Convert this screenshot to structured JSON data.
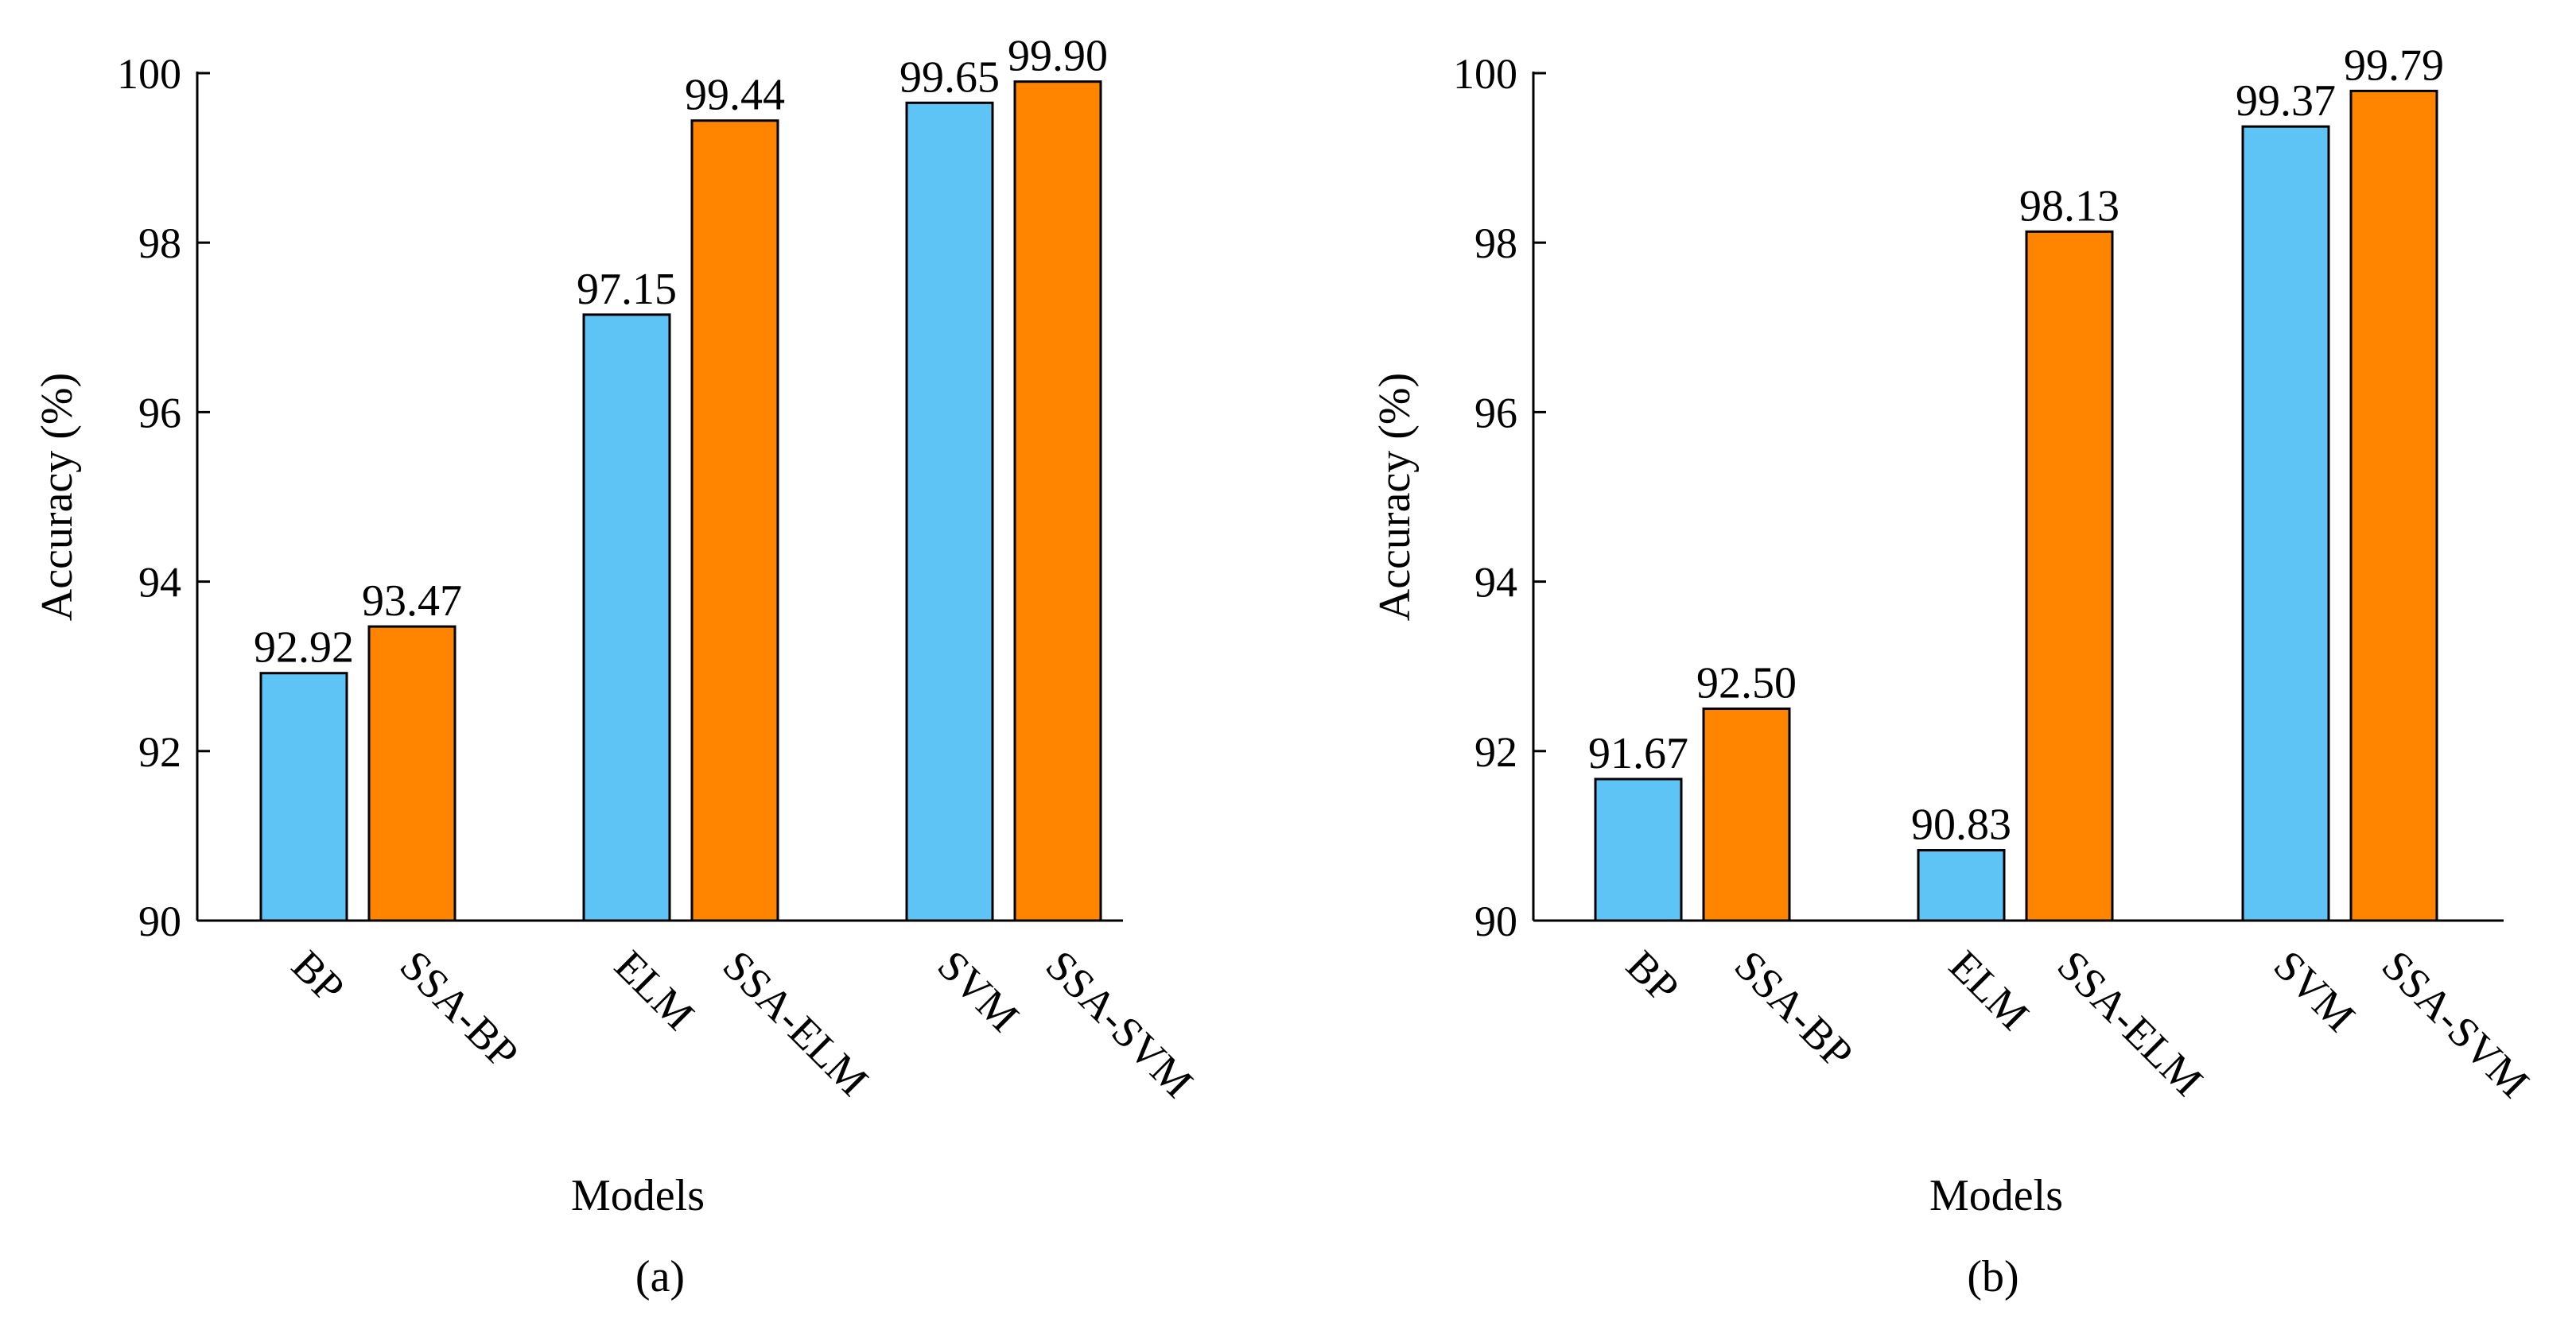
{
  "chart_data": [
    {
      "type": "bar",
      "panel_label": "(a)",
      "categories": [
        "BP",
        "SSA-BP",
        "ELM",
        "SSA-ELM",
        "SVM",
        "SSA-SVM"
      ],
      "values": [
        92.92,
        93.47,
        97.15,
        99.44,
        99.65,
        99.9
      ],
      "value_labels": [
        "92.92",
        "93.47",
        "97.15",
        "99.44",
        "99.65",
        "99.90"
      ],
      "colors": [
        "#5EC4F5",
        "#FF8500",
        "#5EC4F5",
        "#FF8500",
        "#5EC4F5",
        "#FF8500"
      ],
      "xlabel": "Models",
      "ylabel": "Accuracy (%)",
      "ylim": [
        90,
        100
      ],
      "yticks": [
        90,
        92,
        94,
        96,
        98,
        100
      ],
      "grid": false
    },
    {
      "type": "bar",
      "panel_label": "(b)",
      "categories": [
        "BP",
        "SSA-BP",
        "ELM",
        "SSA-ELM",
        "SVM",
        "SSA-SVM"
      ],
      "values": [
        91.67,
        92.5,
        90.83,
        98.13,
        99.37,
        99.79
      ],
      "value_labels": [
        "91.67",
        "92.50",
        "90.83",
        "98.13",
        "99.37",
        "99.79"
      ],
      "colors": [
        "#5EC4F5",
        "#FF8500",
        "#5EC4F5",
        "#FF8500",
        "#5EC4F5",
        "#FF8500"
      ],
      "xlabel": "Models",
      "ylabel": "Accuracy (%)",
      "ylim": [
        90,
        100
      ],
      "yticks": [
        90,
        92,
        94,
        96,
        98,
        100
      ],
      "grid": false
    }
  ]
}
